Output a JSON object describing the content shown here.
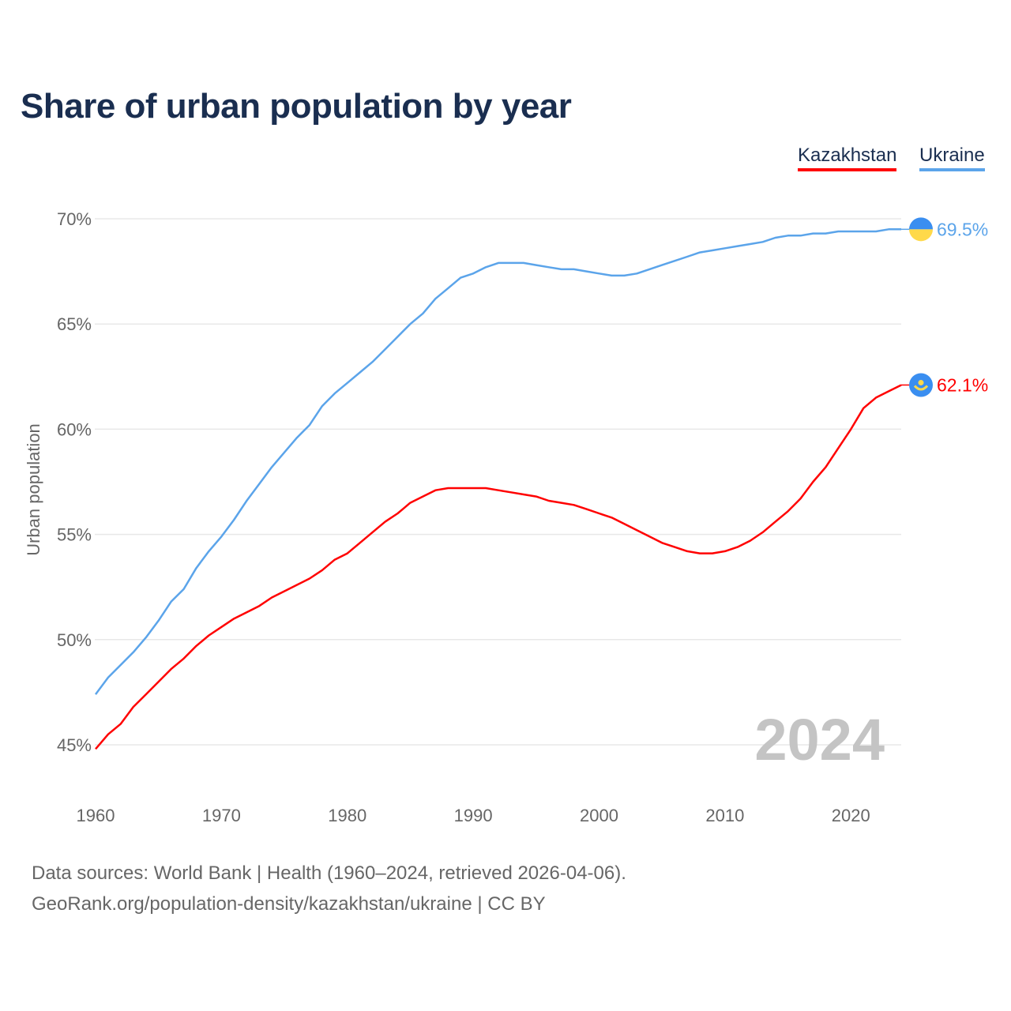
{
  "chart_data": {
    "type": "line",
    "title": "Share of urban population by year",
    "xlabel": "",
    "ylabel": "Urban population",
    "xlim": [
      1960,
      2024
    ],
    "ylim": [
      45,
      70
    ],
    "x_ticks": [
      "1960",
      "1970",
      "1980",
      "1990",
      "2000",
      "2010",
      "2020"
    ],
    "y_ticks": [
      "45%",
      "50%",
      "55%",
      "60%",
      "65%",
      "70%"
    ],
    "y_tick_values": [
      45,
      50,
      55,
      60,
      65,
      70
    ],
    "x_tick_values": [
      1960,
      1970,
      1980,
      1990,
      2000,
      2010,
      2020
    ],
    "grid": true,
    "legend_position": "top-right",
    "watermark_year": "2024",
    "x": [
      1960,
      1961,
      1962,
      1963,
      1964,
      1965,
      1966,
      1967,
      1968,
      1969,
      1970,
      1971,
      1972,
      1973,
      1974,
      1975,
      1976,
      1977,
      1978,
      1979,
      1980,
      1981,
      1982,
      1983,
      1984,
      1985,
      1986,
      1987,
      1988,
      1989,
      1990,
      1991,
      1992,
      1993,
      1994,
      1995,
      1996,
      1997,
      1998,
      1999,
      2000,
      2001,
      2002,
      2003,
      2004,
      2005,
      2006,
      2007,
      2008,
      2009,
      2010,
      2011,
      2012,
      2013,
      2014,
      2015,
      2016,
      2017,
      2018,
      2019,
      2020,
      2021,
      2022,
      2023,
      2024
    ],
    "series": [
      {
        "name": "Kazakhstan",
        "color": "#ff0000",
        "end_label": "62.1%",
        "flag": "kazakhstan-flag",
        "values": [
          44.8,
          45.5,
          46.0,
          46.8,
          47.4,
          48.0,
          48.6,
          49.1,
          49.7,
          50.2,
          50.6,
          51.0,
          51.3,
          51.6,
          52.0,
          52.3,
          52.6,
          52.9,
          53.3,
          53.8,
          54.1,
          54.6,
          55.1,
          55.6,
          56.0,
          56.5,
          56.8,
          57.1,
          57.2,
          57.2,
          57.2,
          57.2,
          57.1,
          57.0,
          56.9,
          56.8,
          56.6,
          56.5,
          56.4,
          56.2,
          56.0,
          55.8,
          55.5,
          55.2,
          54.9,
          54.6,
          54.4,
          54.2,
          54.1,
          54.1,
          54.2,
          54.4,
          54.7,
          55.1,
          55.6,
          56.1,
          56.7,
          57.5,
          58.2,
          59.1,
          60.0,
          61.0,
          61.5,
          61.8,
          62.1
        ]
      },
      {
        "name": "Ukraine",
        "color": "#5ba4ea",
        "end_label": "69.5%",
        "flag": "ukraine-flag",
        "values": [
          47.4,
          48.2,
          48.8,
          49.4,
          50.1,
          50.9,
          51.8,
          52.4,
          53.4,
          54.2,
          54.9,
          55.7,
          56.6,
          57.4,
          58.2,
          58.9,
          59.6,
          60.2,
          61.1,
          61.7,
          62.2,
          62.7,
          63.2,
          63.8,
          64.4,
          65.0,
          65.5,
          66.2,
          66.7,
          67.2,
          67.4,
          67.7,
          67.9,
          67.9,
          67.9,
          67.8,
          67.7,
          67.6,
          67.6,
          67.5,
          67.4,
          67.3,
          67.3,
          67.4,
          67.6,
          67.8,
          68.0,
          68.2,
          68.4,
          68.5,
          68.6,
          68.7,
          68.8,
          68.9,
          69.1,
          69.2,
          69.2,
          69.3,
          69.3,
          69.4,
          69.4,
          69.4,
          69.4,
          69.5,
          69.5
        ]
      }
    ]
  },
  "footer": {
    "line1": "Data sources: World Bank | Health (1960–2024, retrieved 2026-04-06).",
    "line2": "GeoRank.org/population-density/kazakhstan/ukraine | CC BY"
  }
}
